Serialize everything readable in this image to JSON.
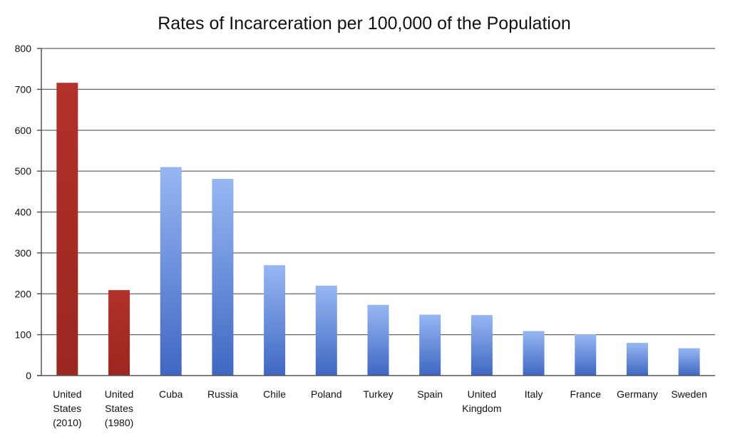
{
  "chart_data": {
    "type": "bar",
    "title": "Rates of Incarceration per 100,000 of the Population",
    "xlabel": "",
    "ylabel": "",
    "ylim": [
      0,
      800
    ],
    "yticks": [
      0,
      100,
      200,
      300,
      400,
      500,
      600,
      700,
      800
    ],
    "grid": true,
    "categories": [
      "United States (2010)",
      "United States (1980)",
      "Cuba",
      "Russia",
      "Chile",
      "Poland",
      "Turkey",
      "Spain",
      "United Kingdom",
      "Italy",
      "France",
      "Germany",
      "Sweden"
    ],
    "category_label_lines": [
      [
        "United",
        "States",
        "(2010)"
      ],
      [
        "United",
        "States",
        "(1980)"
      ],
      [
        "Cuba"
      ],
      [
        "Russia"
      ],
      [
        "Chile"
      ],
      [
        "Poland"
      ],
      [
        "Turkey"
      ],
      [
        "Spain"
      ],
      [
        "United",
        "Kingdom"
      ],
      [
        "Italy"
      ],
      [
        "France"
      ],
      [
        "Germany"
      ],
      [
        "Sweden"
      ]
    ],
    "values": [
      716,
      209,
      510,
      481,
      270,
      220,
      173,
      149,
      148,
      109,
      101,
      80,
      67
    ],
    "colors": {
      "us_bar": "#b3312b",
      "us_bar_dark": "#9a2720",
      "other_bar_top": "#97b7f3",
      "other_bar_bottom": "#3f67c2",
      "grid": "#666666"
    },
    "highlight_categories": [
      "United States (2010)",
      "United States (1980)"
    ]
  }
}
